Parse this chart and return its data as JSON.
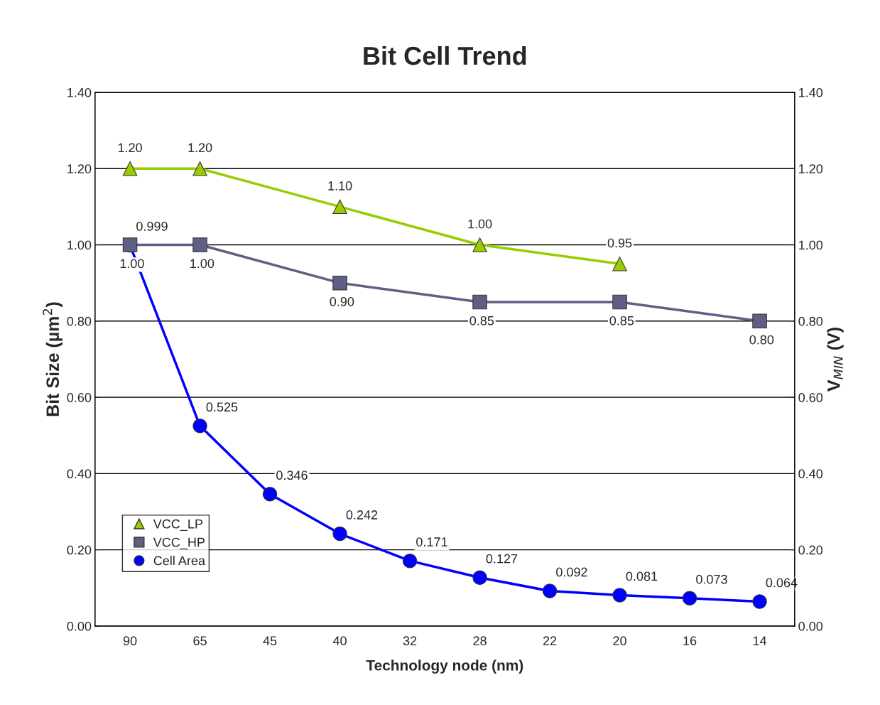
{
  "chart_data": {
    "type": "line",
    "title": "Bit Cell Trend",
    "xlabel": "Technology node (nm)",
    "ylabel": "Bit Size (µm$^{2}$)",
    "y2label": "V$_{MIN}$ (V)",
    "categories": [
      "90",
      "65",
      "45",
      "40",
      "32",
      "28",
      "22",
      "20",
      "16",
      "14"
    ],
    "series": [
      {
        "name": "VCC_LP",
        "color": "#99cc00",
        "axis": "y2",
        "marker": "triangle",
        "values": [
          1.2,
          1.2,
          null,
          1.1,
          null,
          1.0,
          null,
          0.95,
          null,
          null
        ],
        "value_labels": [
          "1.20",
          "1.20",
          null,
          "1.10",
          null,
          "1.00",
          null,
          "0.95",
          null,
          null
        ]
      },
      {
        "name": "VCC_HP",
        "color": "#5f5f85",
        "axis": "y2",
        "marker": "square",
        "values": [
          1.0,
          1.0,
          null,
          0.9,
          null,
          0.85,
          null,
          0.85,
          null,
          0.8
        ],
        "value_labels": [
          "1.00",
          "1.00",
          null,
          "0.90",
          null,
          "0.85",
          null,
          "0.85",
          null,
          "0.80"
        ]
      },
      {
        "name": "Cell Area",
        "color": "#0000ff",
        "axis": "y",
        "marker": "circle",
        "values": [
          0.999,
          0.525,
          0.346,
          0.242,
          0.171,
          0.127,
          0.092,
          0.081,
          0.073,
          0.064
        ],
        "value_labels": [
          "0.999",
          "0.525",
          "0.346",
          "0.242",
          "0.171",
          "0.127",
          "0.092",
          "0.081",
          "0.073",
          "0.064"
        ]
      }
    ],
    "ylim": [
      0,
      1.4
    ],
    "yticks": [
      {
        "value": 0,
        "label": "0.00"
      },
      {
        "value": 0.2,
        "label": "0.20"
      },
      {
        "value": 0.4,
        "label": "0.40"
      },
      {
        "value": 0.6,
        "label": "0.60"
      },
      {
        "value": 0.8,
        "label": "0.80"
      },
      {
        "value": 1.0,
        "label": "1.00"
      },
      {
        "value": 1.2,
        "label": "1.20"
      },
      {
        "value": 1.4,
        "label": "1.40"
      }
    ],
    "y2lim": [
      0,
      1.4
    ],
    "y2ticks": [
      {
        "value": 0,
        "label": "0.00"
      },
      {
        "value": 0.2,
        "label": "0.20"
      },
      {
        "value": 0.4,
        "label": "0.40"
      },
      {
        "value": 0.6,
        "label": "0.60"
      },
      {
        "value": 0.8,
        "label": "0.80"
      },
      {
        "value": 1.0,
        "label": "1.00"
      },
      {
        "value": 1.2,
        "label": "1.20"
      },
      {
        "value": 1.4,
        "label": "1.40"
      }
    ],
    "grid": "y",
    "legend": "bottom left",
    "line_style": "solid"
  }
}
